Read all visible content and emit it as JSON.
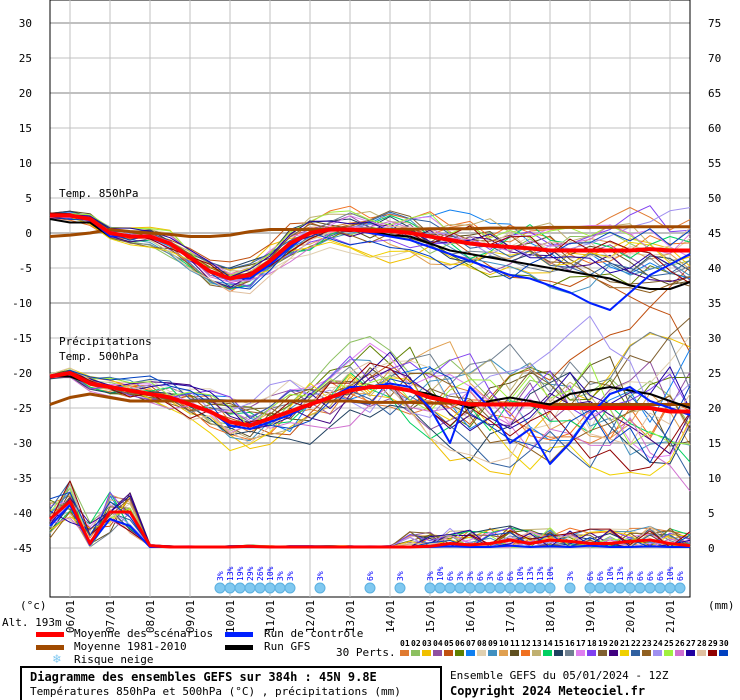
{
  "chart_data": {
    "type": "line",
    "title": "Diagramme des ensembles GEFS sur 384h : 45N 9.8E",
    "subtitle": "Températures 850hPa et 500hPa (°C) , précipitations (mm)",
    "run_label": "Ensemble GEFS du 05/01/2024 - 12Z",
    "copyright": "Copyright 2024 Meteociel.fr",
    "altitude": "Alt. 193m",
    "left_unit": "(°c)",
    "right_unit": "(mm)",
    "left_axis": {
      "range": [
        -45,
        30
      ],
      "ticks": [
        "30",
        "25",
        "20",
        "15",
        "10",
        "5",
        "0",
        "-5",
        "-10",
        "-15",
        "-20",
        "-25",
        "-30",
        "-35",
        "-40",
        "-45"
      ]
    },
    "right_axis": {
      "range": [
        0,
        75
      ],
      "ticks": [
        "75",
        "70",
        "65",
        "60",
        "55",
        "50",
        "45",
        "40",
        "35",
        "30",
        "25",
        "20",
        "15",
        "10",
        "5",
        "0"
      ]
    },
    "x_dates": [
      "06/01",
      "07/01",
      "08/01",
      "09/01",
      "10/01",
      "11/01",
      "12/01",
      "13/01",
      "14/01",
      "15/01",
      "16/01",
      "17/01",
      "18/01",
      "19/01",
      "20/01",
      "21/01"
    ],
    "x_step_hours": 12,
    "x_start": "05/01 12Z",
    "grid": true,
    "panel_labels": {
      "t850": "Temp. 850hPa",
      "t500": "Temp. 500hPa",
      "precip": "Précipitations"
    },
    "series": {
      "t850_mean": [
        2.5,
        2.5,
        2,
        0,
        -0.5,
        -0.5,
        -1.5,
        -3.5,
        -5.5,
        -6.5,
        -6,
        -4,
        -1.5,
        0,
        0.5,
        0.5,
        0.3,
        0.3,
        0,
        -0.5,
        -1,
        -1.5,
        -1.8,
        -2,
        -2.2,
        -2.5,
        -2.5,
        -2.5,
        -2.5,
        -2.5,
        -2.3,
        -2.5,
        -2.5
      ],
      "t850_control": [
        2.5,
        2.5,
        2,
        -0.5,
        -0.5,
        -0.5,
        -1.5,
        -3.5,
        -5.5,
        -6.5,
        -6.5,
        -4.5,
        -2,
        0,
        0.5,
        0.5,
        0,
        -0.5,
        -1,
        -2,
        -3,
        -4,
        -5,
        -6,
        -6.5,
        -7.5,
        -8.5,
        -10,
        -11,
        -8.5,
        -6,
        -4.5,
        -3
      ],
      "t850_gfs": [
        2,
        1.5,
        1.5,
        -0.5,
        -0.5,
        -0.5,
        -1.5,
        -3.5,
        -5.5,
        -6.5,
        -6,
        -4,
        -1.5,
        0,
        0.5,
        0.5,
        0.3,
        -0.3,
        -0.5,
        -1.5,
        -2.5,
        -3,
        -3.5,
        -4,
        -4.5,
        -5,
        -5.5,
        -6,
        -6.5,
        -7.5,
        -8,
        -8,
        -7
      ],
      "t850_clim": [
        -0.5,
        -0.3,
        0,
        0.5,
        0.2,
        0,
        -0.2,
        -0.5,
        -0.5,
        -0.3,
        0.2,
        0.5,
        0.5,
        0.5,
        0.5,
        0.5,
        0.5,
        0.5,
        0.5,
        0.6,
        0.6,
        0.6,
        0.7,
        0.7,
        0.7,
        0.8,
        0.8,
        0.8,
        0.8,
        0.9,
        0.9,
        0.9,
        0.9
      ],
      "t500_mean": [
        -20.5,
        -20,
        -21.5,
        -22,
        -22.5,
        -23,
        -23.5,
        -24.5,
        -25.5,
        -27,
        -27.5,
        -26.5,
        -25.5,
        -24.5,
        -23.5,
        -22.5,
        -22,
        -22,
        -22.5,
        -23.5,
        -24,
        -24.5,
        -24.5,
        -24.5,
        -24.5,
        -25,
        -25,
        -25,
        -25,
        -25,
        -25,
        -25.5,
        -25.5
      ],
      "t500_control": [
        -20.5,
        -20,
        -21.5,
        -22,
        -22.5,
        -23,
        -23.5,
        -24.5,
        -25.5,
        -27.5,
        -28,
        -27,
        -26,
        -24.5,
        -23.5,
        -22,
        -22,
        -21.5,
        -22,
        -25,
        -30,
        -22,
        -25,
        -30,
        -28,
        -33,
        -30,
        -26,
        -23,
        -22,
        -24,
        -25,
        -26
      ],
      "t500_gfs": [
        -20.5,
        -20.5,
        -21.5,
        -22,
        -22.5,
        -23,
        -23.5,
        -24.5,
        -25.5,
        -27,
        -27.5,
        -26.5,
        -25.5,
        -24.5,
        -23.5,
        -22.5,
        -22,
        -22,
        -22.5,
        -23,
        -24,
        -25,
        -24,
        -23.5,
        -24,
        -24.5,
        -23,
        -22.5,
        -22,
        -22.5,
        -23,
        -24,
        -25
      ],
      "t500_clim": [
        -24.5,
        -23.5,
        -23,
        -23.5,
        -24,
        -24,
        -24,
        -24,
        -24,
        -24,
        -24,
        -24,
        -24,
        -24,
        -24,
        -24,
        -24.2,
        -24.2,
        -24.2,
        -24.3,
        -24.3,
        -24.3,
        -24.4,
        -24.4,
        -24.4,
        -24.5,
        -24.5,
        -24.5,
        -24.5,
        -24.5,
        -24.5,
        -24.5,
        -24.5
      ],
      "precip_mean": [
        4,
        6.5,
        0.5,
        5,
        5,
        0.2,
        0,
        0,
        0,
        0,
        0.1,
        0,
        0,
        0,
        0,
        0,
        0,
        0,
        0,
        0.1,
        0.5,
        0.3,
        0.5,
        1,
        0.5,
        1,
        0.8,
        0.5,
        0.5,
        0.8,
        1,
        0.5,
        0.2
      ],
      "precip_control": [
        3,
        6,
        0.3,
        4,
        3,
        0,
        0,
        0,
        0,
        0,
        0,
        0,
        0,
        0,
        0,
        0,
        0,
        0,
        0,
        0,
        0.1,
        0,
        0,
        0.2,
        0,
        0.1,
        0,
        0.2,
        0,
        0,
        0.1,
        0,
        0
      ]
    },
    "series_names": {
      "mean": "Moyenne des scénarios",
      "clim": "Moyenne 1981-2010",
      "control": "Run de contrôle",
      "gfs": "Run GFS",
      "snow": "Risque neige"
    },
    "perturbations_label": "30 Perts.",
    "perturbations": [
      "01",
      "02",
      "03",
      "04",
      "05",
      "06",
      "07",
      "08",
      "09",
      "10",
      "11",
      "12",
      "13",
      "14",
      "15",
      "16",
      "17",
      "18",
      "19",
      "20",
      "21",
      "22",
      "23",
      "24",
      "25",
      "26",
      "27",
      "28",
      "29",
      "30"
    ],
    "perturbation_colors": [
      "#e07a30",
      "#8cc060",
      "#f0c000",
      "#9050a0",
      "#c05010",
      "#608000",
      "#1080f0",
      "#e0d0b0",
      "#4090c0",
      "#e0a050",
      "#605020",
      "#f07020",
      "#c0b070",
      "#00d060",
      "#204060",
      "#708090",
      "#e080f0",
      "#8040f0",
      "#806030",
      "#400080",
      "#f0d000",
      "#3060a0",
      "#906020",
      "#a090f0",
      "#a0f040",
      "#d070d0",
      "#2000a0",
      "#e0c0a0",
      "#900000",
      "#0040c0"
    ],
    "colors": {
      "mean": "#ff0000",
      "clim": "#a04a00",
      "control": "#0020ff",
      "gfs": "#000000",
      "snow": "#80c8f0",
      "snow_text": "#0000ff",
      "grid": "#c0c0c0"
    },
    "snow_risk": [
      {
        "h": 102,
        "pct": "3%"
      },
      {
        "h": 108,
        "pct": "13%"
      },
      {
        "h": 114,
        "pct": "19%"
      },
      {
        "h": 120,
        "pct": "29%"
      },
      {
        "h": 126,
        "pct": "26%"
      },
      {
        "h": 132,
        "pct": "10%"
      },
      {
        "h": 138,
        "pct": "3%"
      },
      {
        "h": 144,
        "pct": "3%"
      },
      {
        "h": 162,
        "pct": "3%"
      },
      {
        "h": 192,
        "pct": "6%"
      },
      {
        "h": 210,
        "pct": "3%"
      },
      {
        "h": 228,
        "pct": "3%"
      },
      {
        "h": 234,
        "pct": "10%"
      },
      {
        "h": 240,
        "pct": "6%"
      },
      {
        "h": 246,
        "pct": "3%"
      },
      {
        "h": 252,
        "pct": "3%"
      },
      {
        "h": 258,
        "pct": "6%"
      },
      {
        "h": 264,
        "pct": "3%"
      },
      {
        "h": 270,
        "pct": "6%"
      },
      {
        "h": 276,
        "pct": "6%"
      },
      {
        "h": 282,
        "pct": "10%"
      },
      {
        "h": 288,
        "pct": "13%"
      },
      {
        "h": 294,
        "pct": "13%"
      },
      {
        "h": 300,
        "pct": "10%"
      },
      {
        "h": 312,
        "pct": "3%"
      },
      {
        "h": 324,
        "pct": "6%"
      },
      {
        "h": 330,
        "pct": "6%"
      },
      {
        "h": 336,
        "pct": "10%"
      },
      {
        "h": 342,
        "pct": "13%"
      },
      {
        "h": 348,
        "pct": "3%"
      },
      {
        "h": 354,
        "pct": "6%"
      },
      {
        "h": 360,
        "pct": "6%"
      },
      {
        "h": 366,
        "pct": "6%"
      },
      {
        "h": 372,
        "pct": "10%"
      },
      {
        "h": 378,
        "pct": "6%"
      }
    ]
  }
}
